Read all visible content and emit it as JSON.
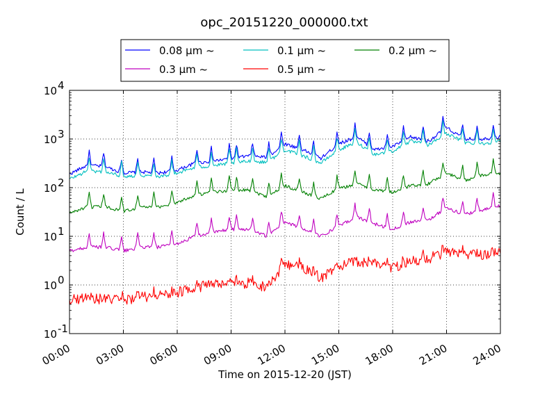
{
  "chart_data": {
    "type": "line",
    "title": "opc_20151220_000000.txt",
    "xlabel": "Time on 2015-12-20 (JST)",
    "ylabel": "Count / L",
    "y_scale": "log",
    "ylim": [
      0.1,
      10000
    ],
    "xlim": [
      "00:00",
      "24:00"
    ],
    "grid": true,
    "legend_position": "top-outside",
    "x_ticks": [
      "00:00",
      "03:00",
      "06:00",
      "09:00",
      "12:00",
      "15:00",
      "18:00",
      "21:00",
      "24:00"
    ],
    "y_ticks": [
      {
        "base": "10",
        "exp": "-1",
        "value": 0.1
      },
      {
        "base": "10",
        "exp": "0",
        "value": 1
      },
      {
        "base": "10",
        "exp": "1",
        "value": 10
      },
      {
        "base": "10",
        "exp": "2",
        "value": 100
      },
      {
        "base": "10",
        "exp": "3",
        "value": 1000
      },
      {
        "base": "10",
        "exp": "4",
        "value": 10000
      }
    ],
    "x": [
      "00:00",
      "01:00",
      "02:00",
      "03:00",
      "04:00",
      "05:00",
      "06:00",
      "07:00",
      "08:00",
      "09:00",
      "10:00",
      "11:00",
      "12:00",
      "13:00",
      "14:00",
      "15:00",
      "16:00",
      "17:00",
      "18:00",
      "19:00",
      "20:00",
      "21:00",
      "22:00",
      "23:00",
      "24:00"
    ],
    "series": [
      {
        "name": "0.08 μm ~",
        "color": "#0000ff",
        "values": [
          190,
          290,
          270,
          200,
          210,
          200,
          230,
          320,
          350,
          400,
          450,
          420,
          800,
          600,
          400,
          800,
          1100,
          600,
          700,
          1100,
          900,
          1700,
          1000,
          1000,
          1100
        ]
      },
      {
        "name": "0.1 μm ~",
        "color": "#00bfbf",
        "values": [
          150,
          220,
          210,
          170,
          180,
          170,
          200,
          260,
          280,
          320,
          350,
          330,
          600,
          450,
          320,
          600,
          850,
          480,
          560,
          900,
          750,
          1300,
          850,
          800,
          900
        ]
      },
      {
        "name": "0.2 μm ~",
        "color": "#008000",
        "values": [
          30,
          40,
          40,
          33,
          40,
          40,
          50,
          70,
          80,
          90,
          90,
          65,
          110,
          80,
          60,
          95,
          120,
          90,
          80,
          110,
          120,
          200,
          140,
          180,
          200
        ]
      },
      {
        "name": "0.3 μm ~",
        "color": "#bf00bf",
        "values": [
          5,
          6,
          6,
          5,
          6,
          6,
          7,
          10,
          12,
          14,
          14,
          10,
          20,
          14,
          10,
          16,
          25,
          18,
          14,
          20,
          22,
          38,
          28,
          35,
          42
        ]
      },
      {
        "name": "0.5 μm ~",
        "color": "#ff0000",
        "values": [
          0.5,
          0.55,
          0.5,
          0.5,
          0.55,
          0.6,
          0.7,
          0.9,
          1.0,
          1.0,
          1.1,
          0.9,
          2.8,
          2.2,
          1.4,
          2.4,
          3.0,
          2.8,
          2.3,
          3.0,
          3.5,
          4.8,
          4.0,
          4.2,
          4.5
        ]
      }
    ]
  }
}
